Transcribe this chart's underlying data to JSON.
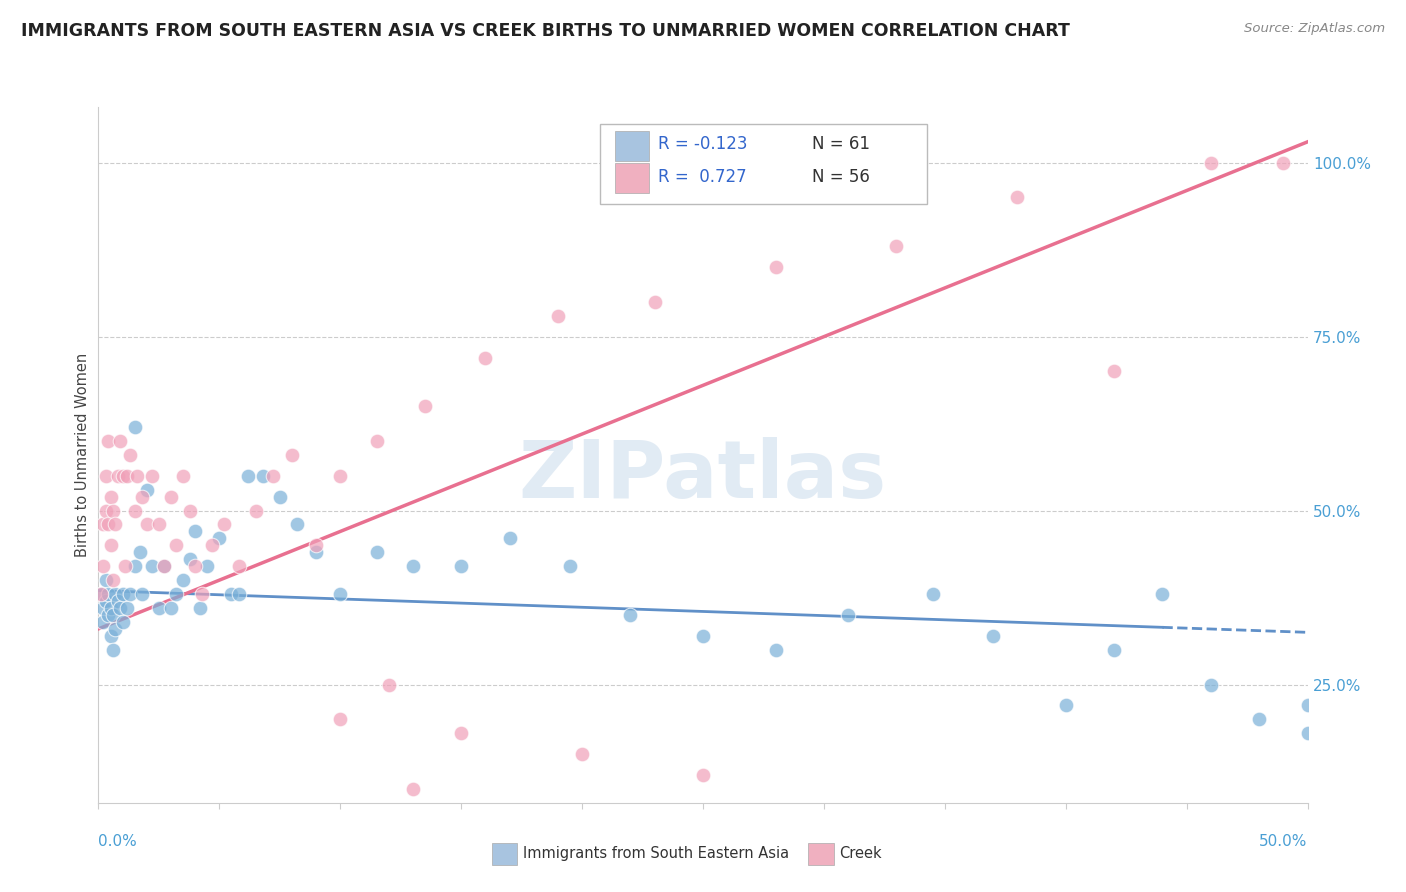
{
  "title": "IMMIGRANTS FROM SOUTH EASTERN ASIA VS CREEK BIRTHS TO UNMARRIED WOMEN CORRELATION CHART",
  "source": "Source: ZipAtlas.com",
  "ylabel": "Births to Unmarried Women",
  "right_yticks_vals": [
    0.25,
    0.5,
    0.75,
    1.0
  ],
  "right_yticks_labels": [
    "25.0%",
    "50.0%",
    "75.0%",
    "100.0%"
  ],
  "legend1_label_r": "R = -0.123",
  "legend1_label_n": "N = 61",
  "legend2_label_r": "R =  0.727",
  "legend2_label_n": "N = 56",
  "legend1_color": "#a8c4e0",
  "legend2_color": "#f0b0c0",
  "blue_color": "#7ab0d8",
  "pink_color": "#f0a0b8",
  "blue_line_color": "#6090c8",
  "pink_line_color": "#e87090",
  "watermark": "ZIPatlas",
  "xmin": 0.0,
  "xmax": 0.5,
  "ymin": 0.08,
  "ymax": 1.08,
  "blue_trend_x": [
    0.0,
    0.5
  ],
  "blue_trend_y": [
    0.385,
    0.325
  ],
  "pink_trend_x": [
    0.0,
    0.5
  ],
  "pink_trend_y": [
    0.33,
    1.03
  ],
  "blue_scatter_x": [
    0.001,
    0.002,
    0.002,
    0.003,
    0.003,
    0.004,
    0.004,
    0.005,
    0.005,
    0.006,
    0.006,
    0.007,
    0.007,
    0.008,
    0.009,
    0.01,
    0.01,
    0.012,
    0.013,
    0.015,
    0.015,
    0.017,
    0.018,
    0.02,
    0.022,
    0.025,
    0.027,
    0.03,
    0.032,
    0.035,
    0.038,
    0.04,
    0.042,
    0.045,
    0.05,
    0.055,
    0.058,
    0.062,
    0.068,
    0.075,
    0.082,
    0.09,
    0.1,
    0.115,
    0.13,
    0.15,
    0.17,
    0.195,
    0.22,
    0.25,
    0.28,
    0.31,
    0.345,
    0.37,
    0.4,
    0.42,
    0.44,
    0.46,
    0.48,
    0.5,
    0.5
  ],
  "blue_scatter_y": [
    0.38,
    0.36,
    0.34,
    0.37,
    0.4,
    0.35,
    0.38,
    0.32,
    0.36,
    0.3,
    0.35,
    0.38,
    0.33,
    0.37,
    0.36,
    0.34,
    0.38,
    0.36,
    0.38,
    0.62,
    0.42,
    0.44,
    0.38,
    0.53,
    0.42,
    0.36,
    0.42,
    0.36,
    0.38,
    0.4,
    0.43,
    0.47,
    0.36,
    0.42,
    0.46,
    0.38,
    0.38,
    0.55,
    0.55,
    0.52,
    0.48,
    0.44,
    0.38,
    0.44,
    0.42,
    0.42,
    0.46,
    0.42,
    0.35,
    0.32,
    0.3,
    0.35,
    0.38,
    0.32,
    0.22,
    0.3,
    0.38,
    0.25,
    0.2,
    0.22,
    0.18
  ],
  "pink_scatter_x": [
    0.001,
    0.002,
    0.002,
    0.003,
    0.003,
    0.004,
    0.004,
    0.005,
    0.005,
    0.006,
    0.006,
    0.007,
    0.008,
    0.009,
    0.01,
    0.011,
    0.012,
    0.013,
    0.015,
    0.016,
    0.018,
    0.02,
    0.022,
    0.025,
    0.027,
    0.03,
    0.032,
    0.035,
    0.038,
    0.04,
    0.043,
    0.047,
    0.052,
    0.058,
    0.065,
    0.072,
    0.08,
    0.09,
    0.1,
    0.115,
    0.135,
    0.16,
    0.19,
    0.23,
    0.28,
    0.33,
    0.38,
    0.42,
    0.46,
    0.49,
    0.1,
    0.12,
    0.15,
    0.2,
    0.25,
    0.13
  ],
  "pink_scatter_y": [
    0.38,
    0.42,
    0.48,
    0.5,
    0.55,
    0.48,
    0.6,
    0.45,
    0.52,
    0.4,
    0.5,
    0.48,
    0.55,
    0.6,
    0.55,
    0.42,
    0.55,
    0.58,
    0.5,
    0.55,
    0.52,
    0.48,
    0.55,
    0.48,
    0.42,
    0.52,
    0.45,
    0.55,
    0.5,
    0.42,
    0.38,
    0.45,
    0.48,
    0.42,
    0.5,
    0.55,
    0.58,
    0.45,
    0.55,
    0.6,
    0.65,
    0.72,
    0.78,
    0.8,
    0.85,
    0.88,
    0.95,
    0.7,
    1.0,
    1.0,
    0.2,
    0.25,
    0.18,
    0.15,
    0.12,
    0.1
  ]
}
